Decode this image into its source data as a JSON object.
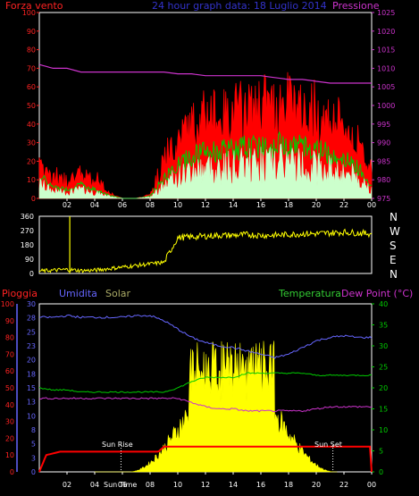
{
  "title": "24 hour graph data: 18 Luglio 2014",
  "colors": {
    "wind": "#ff0000",
    "gust": "#00cc00",
    "avg": "#ccffcc",
    "pressure": "#cc33cc",
    "direction": "#ffff00",
    "rain": "#ff0000",
    "humidity": "#6666ff",
    "solar": "#ffff00",
    "temperature": "#00cc00",
    "dewpoint": "#cc33cc",
    "axis": "#ffffff",
    "grid": "#555555",
    "label_left": "#ff2222",
    "label_title": "#3333cc",
    "label_pressure": "#cc33cc",
    "label_hum": "#6666ff",
    "label_solar": "#aaaa66",
    "label_temp": "#33cc33",
    "label_dew": "#cc33cc",
    "compass": "#ffffff"
  },
  "top_panel": {
    "left_label": "Forza vento",
    "right_label": "Pressione",
    "left_ticks": [
      "100",
      "90",
      "80",
      "70",
      "60",
      "50",
      "40",
      "30",
      "20",
      "10",
      "0"
    ],
    "right_ticks": [
      "1025",
      "1020",
      "1015",
      "1010",
      "1005",
      "1000",
      "995",
      "990",
      "985",
      "980",
      "975"
    ],
    "x_ticks": [
      "02",
      "04",
      "06",
      "08",
      "10",
      "12",
      "14",
      "16",
      "18",
      "20",
      "22",
      "00"
    ]
  },
  "mid_panel": {
    "left_ticks": [
      "360",
      "270",
      "180",
      "90",
      "0"
    ],
    "compass": [
      "N",
      "W",
      "S",
      "E",
      "N"
    ]
  },
  "bottom_panel": {
    "label_rain": "Pioggia",
    "label_hum": "Umidita",
    "label_solar": "Solar",
    "label_temp": "Temperatura",
    "label_dew": "Dew Point (°C)",
    "rain_ticks": [
      "100",
      "90",
      "80",
      "70",
      "60",
      "50",
      "40",
      "30",
      "20",
      "10",
      "0"
    ],
    "hum_ticks": [
      "30",
      "28",
      "25",
      "23",
      "20",
      "18",
      "15",
      "13",
      "10",
      "8",
      "5",
      "3",
      "0"
    ],
    "right_ticks": [
      "40",
      "35",
      "30",
      "25",
      "20",
      "15",
      "10",
      "5",
      "0"
    ],
    "x_ticks": [
      "02",
      "04",
      "06",
      "08",
      "10",
      "12",
      "14",
      "16",
      "18",
      "20",
      "22",
      "00"
    ],
    "sun_rise": "Sun Rise",
    "sun_set": "Sun Set",
    "sun_time": "Sun Time"
  },
  "chart_data": [
    {
      "type": "line",
      "title": "24 hour graph data: 18 Luglio 2014",
      "x": [
        0,
        1,
        2,
        3,
        4,
        5,
        6,
        7,
        8,
        9,
        10,
        11,
        12,
        13,
        14,
        15,
        16,
        17,
        18,
        19,
        20,
        21,
        22,
        23,
        24
      ],
      "ylim": [
        0,
        100
      ],
      "y2lim": [
        975,
        1025
      ],
      "series": [
        {
          "name": "Forza vento",
          "values": [
            20,
            10,
            8,
            12,
            8,
            3,
            0,
            0,
            2,
            18,
            30,
            38,
            42,
            42,
            44,
            46,
            48,
            48,
            50,
            46,
            44,
            40,
            36,
            28,
            12
          ]
        },
        {
          "name": "Pressione",
          "axis": "right",
          "values": [
            1011,
            1010,
            1010,
            1009,
            1009,
            1009,
            1009,
            1009,
            1009,
            1009,
            1008.5,
            1008.5,
            1008,
            1008,
            1008,
            1008,
            1008,
            1007.5,
            1007,
            1007,
            1006.5,
            1006,
            1006,
            1006,
            1006
          ]
        }
      ]
    },
    {
      "type": "line",
      "x": [
        0,
        1,
        2,
        3,
        4,
        5,
        6,
        7,
        8,
        9,
        10,
        11,
        12,
        13,
        14,
        15,
        16,
        17,
        18,
        19,
        20,
        21,
        22,
        23,
        24
      ],
      "ylim": [
        0,
        360
      ],
      "series": [
        {
          "values": [
            15,
            20,
            25,
            18,
            20,
            30,
            40,
            50,
            60,
            70,
            225,
            230,
            235,
            240,
            240,
            245,
            240,
            240,
            245,
            250,
            250,
            255,
            260,
            255,
            250
          ]
        }
      ]
    },
    {
      "type": "line",
      "x": [
        0,
        1,
        2,
        3,
        4,
        5,
        6,
        7,
        8,
        9,
        10,
        11,
        12,
        13,
        14,
        15,
        16,
        17,
        18,
        19,
        20,
        21,
        22,
        23,
        24
      ],
      "ylim": [
        0,
        40
      ],
      "series": [
        {
          "name": "Umidita",
          "values": [
            92,
            92,
            93,
            92,
            92,
            92,
            92,
            93,
            93,
            90,
            85,
            80,
            77,
            75,
            74,
            72,
            70,
            68,
            70,
            74,
            78,
            80,
            81,
            80,
            80
          ]
        },
        {
          "name": "Temperatura",
          "axis": "right",
          "values": [
            20,
            19.5,
            19.5,
            19,
            19,
            19,
            19,
            19,
            19,
            19,
            20,
            21.5,
            22.5,
            22.5,
            22.5,
            23.5,
            23.5,
            23.5,
            23.5,
            23.5,
            23,
            23,
            23,
            23,
            23
          ]
        },
        {
          "name": "Dew Point",
          "axis": "right",
          "values": [
            17.5,
            17.5,
            17.5,
            17.5,
            17.5,
            17.5,
            17.5,
            17.5,
            17.5,
            17.5,
            17.5,
            16.5,
            15.5,
            15,
            15,
            14.5,
            14.5,
            14.5,
            14.5,
            14.5,
            15,
            15.5,
            15.5,
            15.5,
            15.5
          ]
        },
        {
          "name": "Pioggia",
          "values": [
            0,
            10,
            12,
            12,
            12,
            12,
            12,
            12,
            13,
            15,
            15,
            15,
            15,
            15,
            15,
            15,
            15,
            15,
            15,
            15,
            15,
            15,
            15,
            15,
            0
          ]
        }
      ]
    }
  ]
}
